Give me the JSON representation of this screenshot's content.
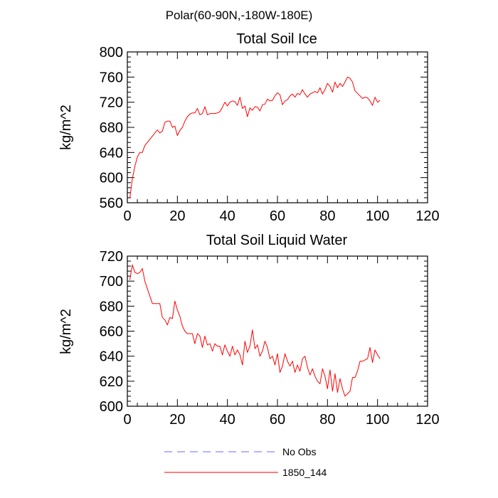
{
  "main_title": "Polar(60-90N,-180W-180E)",
  "legend": [
    {
      "label": "No Obs",
      "color": "#6a6aff",
      "style": "dashed"
    },
    {
      "label": "1850_144",
      "color": "#ff0000",
      "style": "solid"
    }
  ],
  "chart_data": [
    {
      "type": "line",
      "title": "Total Soil Ice",
      "xlabel": "",
      "ylabel": "kg/m^2",
      "xlim": [
        0,
        120
      ],
      "ylim": [
        560,
        800
      ],
      "xticks": [
        0,
        20,
        40,
        60,
        80,
        100,
        120
      ],
      "yticks": [
        560,
        600,
        640,
        680,
        720,
        760,
        800
      ],
      "series": [
        {
          "name": "1850_144",
          "color": "#ff0000",
          "x": [
            1,
            2,
            3,
            4,
            5,
            6,
            7,
            8,
            9,
            10,
            11,
            12,
            13,
            14,
            15,
            16,
            17,
            18,
            19,
            20,
            21,
            22,
            23,
            24,
            25,
            26,
            27,
            28,
            29,
            30,
            31,
            32,
            33,
            34,
            35,
            36,
            37,
            38,
            39,
            40,
            41,
            42,
            43,
            44,
            45,
            46,
            47,
            48,
            49,
            50,
            51,
            52,
            53,
            54,
            55,
            56,
            57,
            58,
            59,
            60,
            61,
            62,
            63,
            64,
            65,
            66,
            67,
            68,
            69,
            70,
            71,
            72,
            73,
            74,
            75,
            76,
            77,
            78,
            79,
            80,
            81,
            82,
            83,
            84,
            85,
            86,
            87,
            88,
            89,
            90,
            91,
            92,
            93,
            94,
            95,
            96,
            97,
            98,
            99,
            100,
            101
          ],
          "y": [
            567,
            598,
            618,
            633,
            640,
            640,
            651,
            656,
            661,
            666,
            671,
            676,
            671,
            674,
            688,
            690,
            690,
            680,
            682,
            667,
            675,
            680,
            690,
            697,
            701,
            703,
            703,
            710,
            700,
            702,
            713,
            700,
            702,
            702,
            702,
            703,
            705,
            712,
            720,
            714,
            720,
            722,
            721,
            715,
            728,
            710,
            714,
            697,
            711,
            707,
            713,
            712,
            706,
            716,
            717,
            725,
            722,
            723,
            730,
            735,
            732,
            716,
            722,
            724,
            730,
            733,
            728,
            734,
            732,
            740,
            733,
            728,
            733,
            735,
            737,
            735,
            743,
            733,
            740,
            750,
            745,
            736,
            752,
            743,
            750,
            745,
            752,
            760,
            758,
            752,
            738,
            734,
            730,
            726,
            728,
            727,
            722,
            715,
            728,
            720,
            723
          ]
        }
      ]
    },
    {
      "type": "line",
      "title": "Total Soil Liquid Water",
      "xlabel": "",
      "ylabel": "kg/m^2",
      "xlim": [
        0,
        120
      ],
      "ylim": [
        600,
        720
      ],
      "xticks": [
        0,
        20,
        40,
        60,
        80,
        100,
        120
      ],
      "yticks": [
        600,
        620,
        640,
        660,
        680,
        700,
        720
      ],
      "series": [
        {
          "name": "1850_144",
          "color": "#ff0000",
          "x": [
            1,
            2,
            3,
            4,
            5,
            6,
            7,
            8,
            9,
            10,
            11,
            12,
            13,
            14,
            15,
            16,
            17,
            18,
            19,
            20,
            21,
            22,
            23,
            24,
            25,
            26,
            27,
            28,
            29,
            30,
            31,
            32,
            33,
            34,
            35,
            36,
            37,
            38,
            39,
            40,
            41,
            42,
            43,
            44,
            45,
            46,
            47,
            48,
            49,
            50,
            51,
            52,
            53,
            54,
            55,
            56,
            57,
            58,
            59,
            60,
            61,
            62,
            63,
            64,
            65,
            66,
            67,
            68,
            69,
            70,
            71,
            72,
            73,
            74,
            75,
            76,
            77,
            78,
            79,
            80,
            81,
            82,
            83,
            84,
            85,
            86,
            87,
            88,
            89,
            90,
            91,
            92,
            93,
            94,
            95,
            96,
            97,
            98,
            99,
            100,
            101
          ],
          "y": [
            701,
            713,
            707,
            706,
            707,
            710,
            700,
            694,
            688,
            682,
            682,
            682,
            682,
            671,
            669,
            665,
            671,
            670,
            684,
            677,
            672,
            664,
            660,
            658,
            658,
            658,
            650,
            658,
            656,
            647,
            656,
            649,
            650,
            644,
            650,
            648,
            648,
            641,
            649,
            644,
            640,
            648,
            641,
            645,
            641,
            633,
            652,
            643,
            648,
            661,
            646,
            649,
            640,
            644,
            652,
            647,
            638,
            640,
            633,
            642,
            627,
            632,
            642,
            636,
            632,
            636,
            627,
            633,
            628,
            638,
            640,
            631,
            625,
            630,
            624,
            620,
            618,
            630,
            624,
            614,
            629,
            612,
            626,
            611,
            622,
            614,
            608,
            610,
            612,
            623,
            623,
            628,
            636,
            636,
            637,
            638,
            647,
            635,
            645,
            641,
            638
          ]
        }
      ]
    }
  ]
}
